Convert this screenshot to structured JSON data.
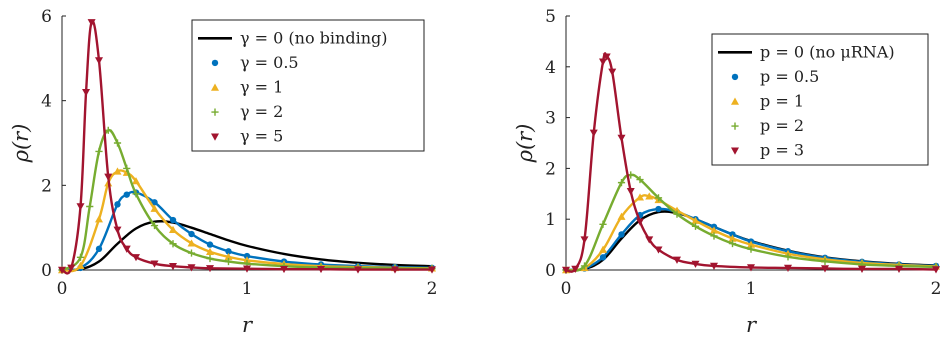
{
  "chart_data": [
    {
      "type": "line",
      "xlabel": "r",
      "ylabel": "ρ(r)",
      "xlim": [
        0,
        2
      ],
      "ylim": [
        0,
        6
      ],
      "xticks": [
        "0",
        "1",
        "2"
      ],
      "yticks": [
        "0",
        "2",
        "4",
        "6"
      ],
      "legend_position": "top-right",
      "grid": false,
      "series": [
        {
          "name": "γ = 0 (no binding)",
          "color": "#000000",
          "marker": "none",
          "x": [
            0,
            0.1,
            0.2,
            0.3,
            0.4,
            0.5,
            0.6,
            0.7,
            0.8,
            0.9,
            1.0,
            1.2,
            1.4,
            1.6,
            1.8,
            2.0
          ],
          "y": [
            0,
            0.02,
            0.2,
            0.62,
            0.98,
            1.14,
            1.12,
            1.0,
            0.85,
            0.7,
            0.57,
            0.38,
            0.25,
            0.17,
            0.12,
            0.09
          ]
        },
        {
          "name": "γ = 0.5",
          "color": "#0072BD",
          "marker": "circle",
          "x": [
            0,
            0.1,
            0.2,
            0.3,
            0.35,
            0.4,
            0.5,
            0.6,
            0.7,
            0.8,
            0.9,
            1.0,
            1.2,
            1.4,
            1.6,
            1.8,
            2.0
          ],
          "y": [
            0,
            0.05,
            0.5,
            1.55,
            1.78,
            1.83,
            1.6,
            1.18,
            0.85,
            0.6,
            0.44,
            0.33,
            0.2,
            0.13,
            0.09,
            0.07,
            0.05
          ]
        },
        {
          "name": "γ = 1",
          "color": "#EDB120",
          "marker": "triangle-up",
          "x": [
            0,
            0.1,
            0.2,
            0.25,
            0.3,
            0.35,
            0.4,
            0.5,
            0.6,
            0.7,
            0.8,
            0.9,
            1.0,
            1.2,
            1.4,
            1.6,
            1.8,
            2.0
          ],
          "y": [
            0,
            0.1,
            1.2,
            2.05,
            2.33,
            2.3,
            2.1,
            1.45,
            0.95,
            0.63,
            0.43,
            0.31,
            0.23,
            0.14,
            0.09,
            0.07,
            0.05,
            0.04
          ]
        },
        {
          "name": "γ = 2",
          "color": "#77AC30",
          "marker": "plus",
          "x": [
            0,
            0.1,
            0.15,
            0.2,
            0.25,
            0.3,
            0.35,
            0.4,
            0.5,
            0.6,
            0.7,
            0.8,
            0.9,
            1.0,
            1.2,
            1.4,
            1.6,
            1.8,
            2.0
          ],
          "y": [
            0,
            0.3,
            1.5,
            2.8,
            3.3,
            3.0,
            2.4,
            1.8,
            1.05,
            0.62,
            0.4,
            0.27,
            0.2,
            0.15,
            0.09,
            0.06,
            0.05,
            0.04,
            0.03
          ]
        },
        {
          "name": "γ = 5",
          "color": "#A2142F",
          "marker": "triangle-down",
          "x": [
            0,
            0.05,
            0.1,
            0.13,
            0.16,
            0.2,
            0.25,
            0.3,
            0.35,
            0.4,
            0.5,
            0.6,
            0.7,
            0.8,
            1.0,
            1.2,
            1.4,
            1.6,
            1.8,
            2.0
          ],
          "y": [
            0,
            0.05,
            1.5,
            4.2,
            5.85,
            4.95,
            2.2,
            0.95,
            0.5,
            0.3,
            0.15,
            0.09,
            0.06,
            0.04,
            0.03,
            0.02,
            0.02,
            0.01,
            0.01,
            0.01
          ]
        }
      ]
    },
    {
      "type": "line",
      "xlabel": "r",
      "ylabel": "ρ(r)",
      "xlim": [
        0,
        2
      ],
      "ylim": [
        0,
        5
      ],
      "xticks": [
        "0",
        "1",
        "2"
      ],
      "yticks": [
        "0",
        "1",
        "2",
        "3",
        "4",
        "5"
      ],
      "legend_position": "top-right",
      "grid": false,
      "series": [
        {
          "name": "p = 0 (no μRNA)",
          "color": "#000000",
          "marker": "none",
          "x": [
            0,
            0.1,
            0.2,
            0.3,
            0.4,
            0.5,
            0.6,
            0.7,
            0.8,
            0.9,
            1.0,
            1.2,
            1.4,
            1.6,
            1.8,
            2.0
          ],
          "y": [
            0,
            0.02,
            0.2,
            0.62,
            0.98,
            1.14,
            1.12,
            1.0,
            0.85,
            0.7,
            0.57,
            0.38,
            0.25,
            0.17,
            0.12,
            0.09
          ]
        },
        {
          "name": "p = 0.5",
          "color": "#0072BD",
          "marker": "circle",
          "x": [
            0,
            0.1,
            0.2,
            0.3,
            0.4,
            0.5,
            0.6,
            0.7,
            0.8,
            0.9,
            1.0,
            1.2,
            1.4,
            1.6,
            1.8,
            2.0
          ],
          "y": [
            0,
            0.03,
            0.25,
            0.7,
            1.08,
            1.2,
            1.14,
            1.0,
            0.85,
            0.7,
            0.56,
            0.37,
            0.24,
            0.16,
            0.11,
            0.08
          ]
        },
        {
          "name": "p = 1",
          "color": "#EDB120",
          "marker": "triangle-up",
          "x": [
            0,
            0.1,
            0.2,
            0.3,
            0.4,
            0.45,
            0.5,
            0.6,
            0.7,
            0.8,
            0.9,
            1.0,
            1.2,
            1.4,
            1.6,
            1.8,
            2.0
          ],
          "y": [
            0,
            0.04,
            0.4,
            1.05,
            1.43,
            1.45,
            1.38,
            1.17,
            0.97,
            0.78,
            0.62,
            0.5,
            0.32,
            0.21,
            0.14,
            0.1,
            0.07
          ]
        },
        {
          "name": "p = 2",
          "color": "#77AC30",
          "marker": "plus",
          "x": [
            0,
            0.1,
            0.2,
            0.3,
            0.35,
            0.4,
            0.5,
            0.6,
            0.7,
            0.8,
            0.9,
            1.0,
            1.2,
            1.4,
            1.6,
            1.8,
            2.0
          ],
          "y": [
            0,
            0.08,
            0.9,
            1.72,
            1.87,
            1.78,
            1.42,
            1.1,
            0.86,
            0.67,
            0.52,
            0.41,
            0.26,
            0.17,
            0.11,
            0.08,
            0.06
          ]
        },
        {
          "name": "p = 3",
          "color": "#A2142F",
          "marker": "triangle-down",
          "x": [
            0,
            0.05,
            0.1,
            0.15,
            0.2,
            0.22,
            0.25,
            0.3,
            0.35,
            0.4,
            0.45,
            0.5,
            0.6,
            0.7,
            0.8,
            1.0,
            1.2,
            1.4,
            1.6,
            1.8,
            2.0
          ],
          "y": [
            0,
            0.02,
            0.6,
            2.7,
            4.1,
            4.2,
            3.9,
            2.6,
            1.55,
            0.95,
            0.6,
            0.4,
            0.2,
            0.12,
            0.08,
            0.05,
            0.04,
            0.03,
            0.02,
            0.02,
            0.01
          ]
        }
      ]
    }
  ]
}
